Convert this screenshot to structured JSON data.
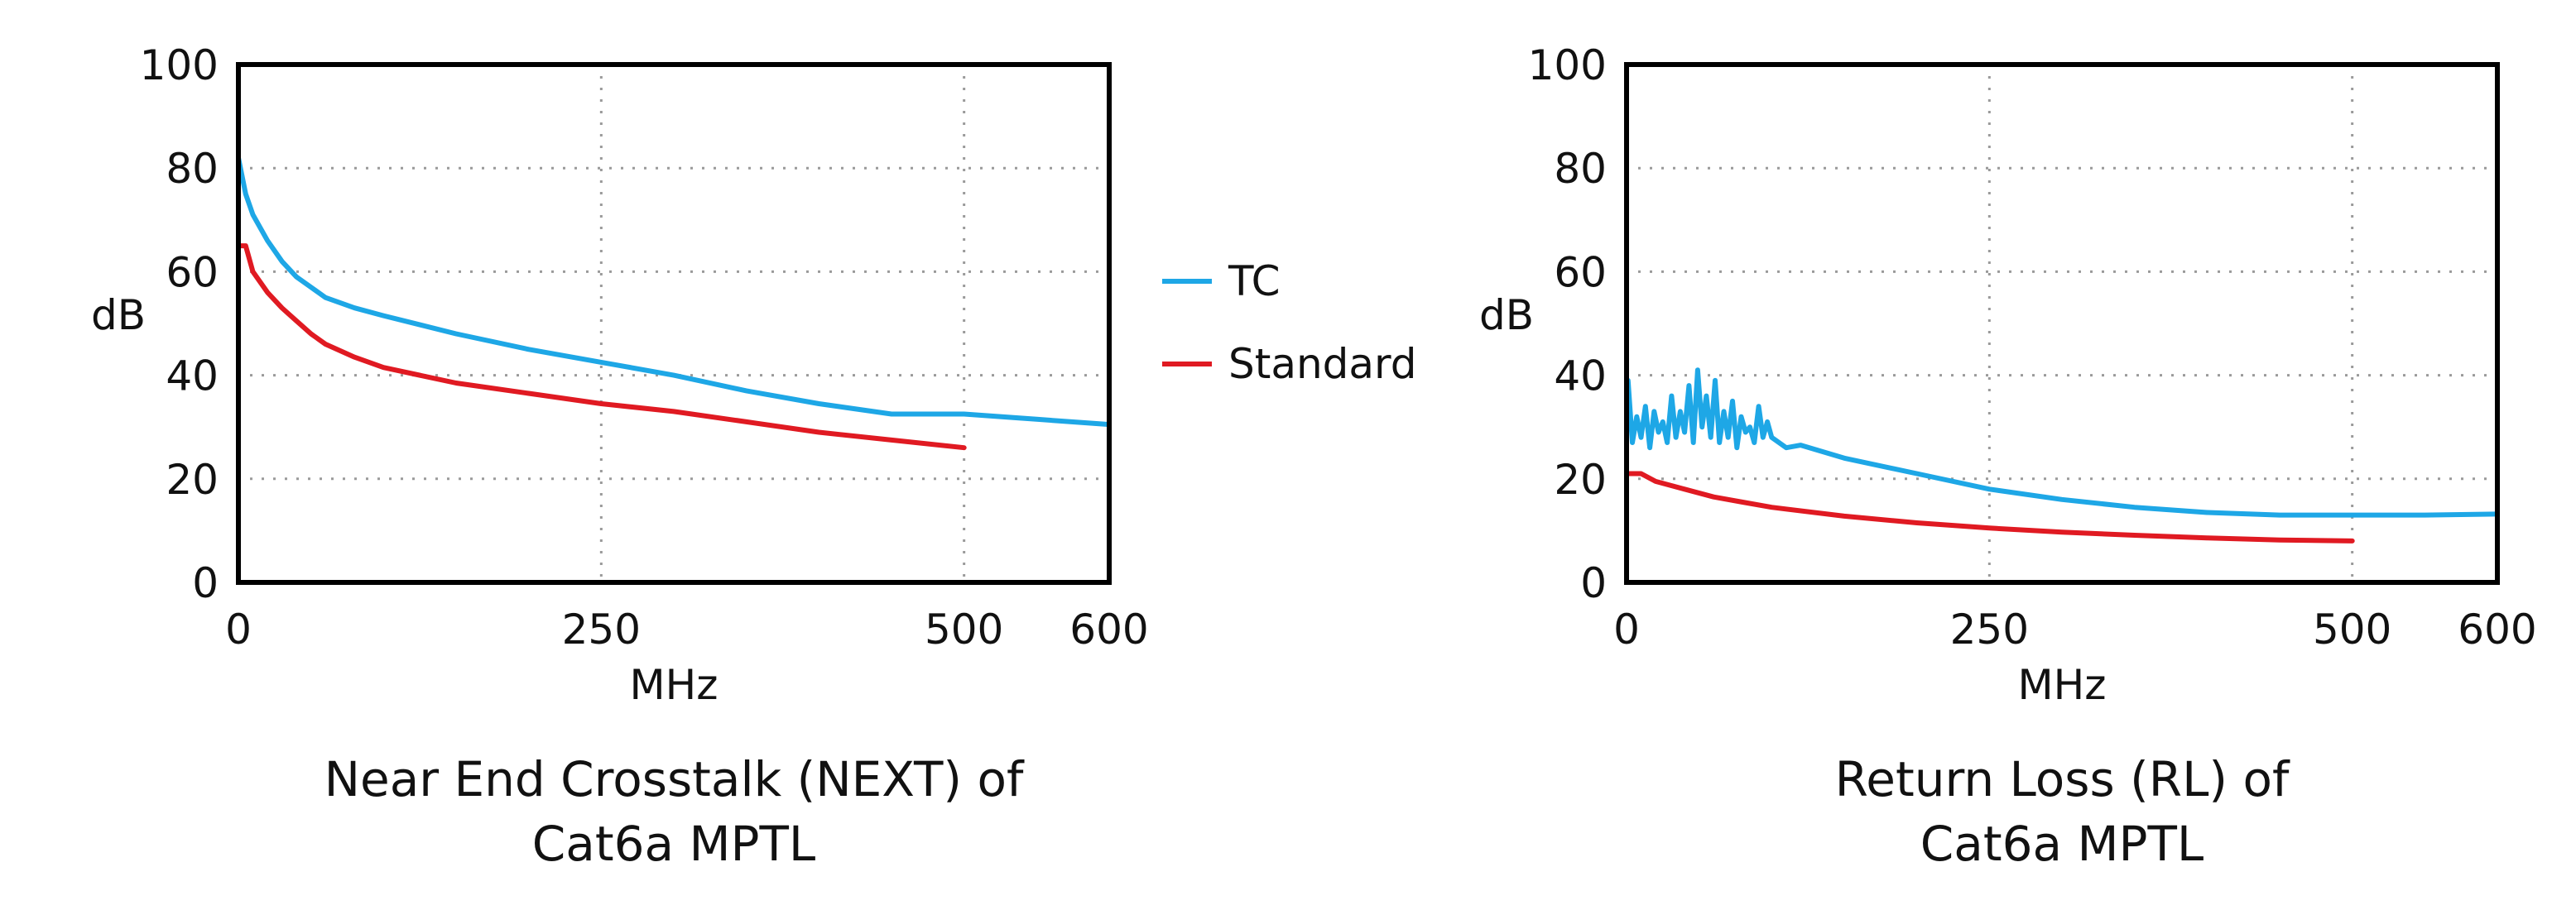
{
  "colors": {
    "tc": "#1ea7e6",
    "standard": "#e01a22",
    "axis": "#000000",
    "grid": "#9a9a9a"
  },
  "chart_data": [
    {
      "type": "line",
      "title": "Near End Crosstalk (NEXT) of",
      "title_line2": "Cat6a MPTL",
      "xlabel": "MHz",
      "ylabel": "dB",
      "xlim": [
        0,
        600
      ],
      "ylim": [
        0,
        100
      ],
      "xticks": [
        0,
        250,
        500,
        600
      ],
      "yticks": [
        0,
        20,
        40,
        60,
        80,
        100
      ],
      "grid": true,
      "legend": "right",
      "series": [
        {
          "name": "TC",
          "color": "#1ea7e6",
          "x": [
            0,
            5,
            10,
            20,
            30,
            40,
            50,
            60,
            80,
            100,
            150,
            200,
            250,
            300,
            350,
            400,
            450,
            500,
            550,
            600
          ],
          "y": [
            82,
            75,
            71,
            66,
            62,
            59,
            57,
            55,
            53,
            51.5,
            48,
            45,
            42.5,
            40,
            37,
            34.5,
            32.5,
            32.5,
            31.5,
            30.5
          ]
        },
        {
          "name": "Standard",
          "color": "#e01a22",
          "x": [
            1,
            5,
            10,
            20,
            30,
            40,
            50,
            60,
            80,
            100,
            150,
            200,
            250,
            300,
            350,
            400,
            450,
            500
          ],
          "y": [
            65,
            65,
            60,
            56,
            53,
            50.5,
            48,
            46,
            43.5,
            41.5,
            38.5,
            36.5,
            34.5,
            33,
            31,
            29,
            27.5,
            26
          ]
        }
      ]
    },
    {
      "type": "line",
      "title": "Return Loss (RL) of",
      "title_line2": "Cat6a MPTL",
      "xlabel": "MHz",
      "ylabel": "dB",
      "xlim": [
        0,
        600
      ],
      "ylim": [
        0,
        100
      ],
      "xticks": [
        0,
        250,
        500,
        600
      ],
      "yticks": [
        0,
        20,
        40,
        60,
        80,
        100
      ],
      "grid": true,
      "legend": "none",
      "series": [
        {
          "name": "TC",
          "color": "#1ea7e6",
          "x": [
            1,
            4,
            7,
            10,
            13,
            16,
            19,
            22,
            25,
            28,
            31,
            34,
            37,
            40,
            43,
            46,
            49,
            52,
            55,
            58,
            61,
            64,
            67,
            70,
            73,
            76,
            79,
            82,
            85,
            88,
            91,
            94,
            97,
            100,
            110,
            120,
            150,
            200,
            250,
            300,
            350,
            400,
            450,
            500,
            550,
            600
          ],
          "y": [
            39,
            27,
            32,
            28,
            34,
            26,
            33,
            29,
            31,
            27,
            36,
            28,
            33,
            29,
            38,
            27,
            41,
            30,
            36,
            28,
            39,
            27,
            33,
            28,
            35,
            26,
            32,
            29,
            30,
            27,
            34,
            28,
            31,
            28,
            26,
            26.5,
            24,
            21,
            18,
            16,
            14.5,
            13.5,
            13,
            13,
            13,
            13.2
          ]
        },
        {
          "name": "Standard",
          "color": "#e01a22",
          "x": [
            1,
            10,
            20,
            40,
            60,
            80,
            100,
            150,
            200,
            250,
            300,
            350,
            400,
            450,
            500
          ],
          "y": [
            21,
            21,
            19.5,
            18,
            16.5,
            15.5,
            14.5,
            12.8,
            11.5,
            10.5,
            9.7,
            9.1,
            8.6,
            8.2,
            8
          ]
        }
      ]
    }
  ]
}
